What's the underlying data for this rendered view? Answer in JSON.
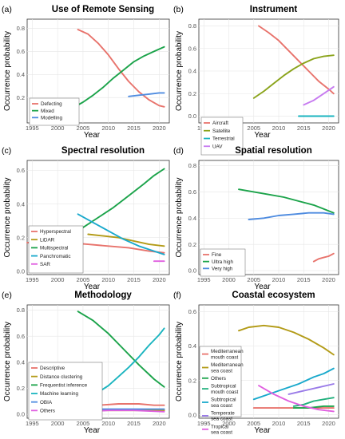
{
  "xlabel": "Year",
  "ylabel": "Occurrence probability",
  "chart_data": [
    {
      "panel": "(a)",
      "title": "Use of Remote Sensing",
      "type": "line",
      "xlim": [
        1994,
        2022
      ],
      "ylim": [
        -0.02,
        0.88
      ],
      "xticks": [
        1995,
        2000,
        2005,
        2010,
        2015,
        2020
      ],
      "yticks": [
        0.2,
        0.4,
        0.6,
        0.8
      ],
      "legend_position": "bottom-left",
      "series": [
        {
          "name": "Defecting",
          "color": "#e8736c",
          "x": [
            2004,
            2006,
            2008,
            2010,
            2012,
            2014,
            2016,
            2018,
            2020,
            2021
          ],
          "y": [
            0.79,
            0.75,
            0.67,
            0.57,
            0.45,
            0.34,
            0.25,
            0.18,
            0.13,
            0.12
          ]
        },
        {
          "name": "Mixed",
          "color": "#1ba34a",
          "x": [
            2003,
            2005,
            2007,
            2009,
            2011,
            2013,
            2015,
            2017,
            2019,
            2021
          ],
          "y": [
            0.11,
            0.16,
            0.22,
            0.29,
            0.37,
            0.44,
            0.51,
            0.56,
            0.6,
            0.64
          ]
        },
        {
          "name": "Modelling",
          "color": "#4f8ce0",
          "x": [
            2014,
            2016,
            2018,
            2020,
            2021
          ],
          "y": [
            0.21,
            0.22,
            0.23,
            0.24,
            0.24
          ]
        }
      ]
    },
    {
      "panel": "(b)",
      "title": "Instrument",
      "type": "line",
      "xlim": [
        1994,
        2022
      ],
      "ylim": [
        -0.06,
        0.86
      ],
      "xticks": [
        1995,
        2000,
        2005,
        2010,
        2015,
        2020
      ],
      "yticks": [
        0.0,
        0.2,
        0.4,
        0.6,
        0.8
      ],
      "legend_position": "bottom-left",
      "series": [
        {
          "name": "Aircraft",
          "color": "#e8736c",
          "x": [
            2006,
            2008,
            2010,
            2012,
            2014,
            2016,
            2018,
            2020,
            2021
          ],
          "y": [
            0.8,
            0.74,
            0.67,
            0.58,
            0.49,
            0.4,
            0.31,
            0.24,
            0.2
          ]
        },
        {
          "name": "Satellite",
          "color": "#8aa31a",
          "x": [
            2005,
            2007,
            2009,
            2011,
            2013,
            2015,
            2017,
            2019,
            2021
          ],
          "y": [
            0.16,
            0.22,
            0.29,
            0.36,
            0.42,
            0.47,
            0.51,
            0.53,
            0.54
          ]
        },
        {
          "name": "Terrestrial",
          "color": "#1ab4bf",
          "x": [
            2014,
            2016,
            2018,
            2020,
            2021
          ],
          "y": [
            0.0,
            0.0,
            0.0,
            0.0,
            0.0
          ]
        },
        {
          "name": "UAV",
          "color": "#c77bf0",
          "x": [
            2015,
            2017,
            2019,
            2021
          ],
          "y": [
            0.1,
            0.14,
            0.2,
            0.26
          ]
        }
      ]
    },
    {
      "panel": "(c)",
      "title": "Spectral resolution",
      "type": "line",
      "xlim": [
        1994,
        2022
      ],
      "ylim": [
        -0.02,
        0.66
      ],
      "xticks": [
        1995,
        2000,
        2005,
        2010,
        2015,
        2020
      ],
      "yticks": [
        0.0,
        0.2,
        0.4,
        0.6
      ],
      "legend_position": "bottom-left",
      "series": [
        {
          "name": "Hyperspectral",
          "color": "#e8736c",
          "x": [
            1994,
            1998,
            2002,
            2006,
            2010,
            2014,
            2018,
            2021
          ],
          "y": [
            0.17,
            0.17,
            0.17,
            0.16,
            0.15,
            0.14,
            0.12,
            0.11
          ]
        },
        {
          "name": "LiDAR",
          "color": "#b39b17",
          "x": [
            2006,
            2009,
            2012,
            2015,
            2018,
            2021
          ],
          "y": [
            0.22,
            0.21,
            0.2,
            0.18,
            0.16,
            0.15
          ]
        },
        {
          "name": "Multispectral",
          "color": "#1ba34a",
          "x": [
            2005,
            2008,
            2011,
            2014,
            2017,
            2019,
            2021
          ],
          "y": [
            0.26,
            0.32,
            0.38,
            0.45,
            0.52,
            0.57,
            0.61
          ]
        },
        {
          "name": "Panchromatic",
          "color": "#1aa9cc",
          "x": [
            2004,
            2007,
            2010,
            2013,
            2016,
            2019,
            2021
          ],
          "y": [
            0.34,
            0.29,
            0.24,
            0.19,
            0.15,
            0.12,
            0.1
          ]
        },
        {
          "name": "SAR",
          "color": "#e05fe0",
          "x": [
            2019,
            2020,
            2021
          ],
          "y": [
            0.06,
            0.06,
            0.06
          ]
        }
      ]
    },
    {
      "panel": "(d)",
      "title": "Spatial resolution",
      "type": "line",
      "xlim": [
        1994,
        2022
      ],
      "ylim": [
        -0.03,
        0.84
      ],
      "xticks": [
        1995,
        2000,
        2005,
        2010,
        2015,
        2020
      ],
      "yticks": [
        0.0,
        0.2,
        0.4,
        0.6,
        0.8
      ],
      "legend_position": "bottom-left",
      "series": [
        {
          "name": "Fine",
          "color": "#e8736c",
          "x": [
            2017,
            2018,
            2019,
            2020,
            2021
          ],
          "y": [
            0.07,
            0.09,
            0.1,
            0.11,
            0.13
          ]
        },
        {
          "name": "Ultra high",
          "color": "#1ba34a",
          "x": [
            2002,
            2005,
            2008,
            2011,
            2014,
            2017,
            2019,
            2021
          ],
          "y": [
            0.62,
            0.6,
            0.58,
            0.56,
            0.53,
            0.5,
            0.47,
            0.44
          ]
        },
        {
          "name": "Very high",
          "color": "#4f8ce0",
          "x": [
            2004,
            2007,
            2010,
            2013,
            2016,
            2019,
            2021
          ],
          "y": [
            0.39,
            0.4,
            0.42,
            0.43,
            0.44,
            0.44,
            0.43
          ]
        }
      ]
    },
    {
      "panel": "(e)",
      "title": "Methodology",
      "type": "line",
      "xlim": [
        1994,
        2022
      ],
      "ylim": [
        -0.03,
        0.84
      ],
      "xticks": [
        1995,
        2000,
        2005,
        2010,
        2015,
        2020
      ],
      "yticks": [
        0.0,
        0.2,
        0.4,
        0.6,
        0.8
      ],
      "legend_position": "bottom-left",
      "series": [
        {
          "name": "Descriptive",
          "color": "#e8736c",
          "x": [
            1996,
            2000,
            2004,
            2008,
            2012,
            2016,
            2019,
            2021
          ],
          "y": [
            0.02,
            0.04,
            0.05,
            0.07,
            0.08,
            0.08,
            0.07,
            0.07
          ]
        },
        {
          "name": "Distance clustering",
          "color": "#b39b17",
          "x": [
            2000,
            2005,
            2010,
            2015,
            2021
          ],
          "y": [
            0.03,
            0.03,
            0.03,
            0.03,
            0.03
          ]
        },
        {
          "name": "Frequentist inference",
          "color": "#1ba34a",
          "x": [
            2004,
            2007,
            2010,
            2013,
            2016,
            2019,
            2021
          ],
          "y": [
            0.79,
            0.72,
            0.62,
            0.5,
            0.38,
            0.27,
            0.21
          ]
        },
        {
          "name": "Machine learning",
          "color": "#1ab4bf",
          "x": [
            2008,
            2010,
            2012,
            2014,
            2016,
            2018,
            2020,
            2021
          ],
          "y": [
            0.17,
            0.22,
            0.29,
            0.36,
            0.44,
            0.53,
            0.61,
            0.66
          ]
        },
        {
          "name": "OBIA",
          "color": "#4f8ce0",
          "x": [
            2008,
            2011,
            2014,
            2017,
            2020,
            2021
          ],
          "y": [
            0.04,
            0.04,
            0.04,
            0.04,
            0.04,
            0.04
          ]
        },
        {
          "name": "Others",
          "color": "#e05fe0",
          "x": [
            2000,
            2005,
            2010,
            2015,
            2021
          ],
          "y": [
            0.02,
            0.02,
            0.03,
            0.03,
            0.02
          ]
        }
      ]
    },
    {
      "panel": "(f)",
      "title": "Coastal ecosystem",
      "type": "line",
      "xlim": [
        1994,
        2022
      ],
      "ylim": [
        -0.02,
        0.64
      ],
      "xticks": [
        1995,
        2000,
        2005,
        2010,
        2015,
        2020
      ],
      "yticks": [
        0.0,
        0.2,
        0.4,
        0.6
      ],
      "legend_position": "left",
      "series": [
        {
          "name": "Mediterranean mouth coast",
          "color": "#e8736c",
          "x": [
            2005,
            2010,
            2015,
            2021
          ],
          "y": [
            0.04,
            0.04,
            0.04,
            0.04
          ]
        },
        {
          "name": "Mediterranean sea coast",
          "color": "#b39b17",
          "x": [
            2002,
            2004,
            2007,
            2010,
            2013,
            2016,
            2019,
            2021
          ],
          "y": [
            0.49,
            0.51,
            0.52,
            0.51,
            0.48,
            0.44,
            0.39,
            0.35
          ]
        },
        {
          "name": "Others",
          "color": "#1ba34a",
          "x": [
            2013,
            2016,
            2019,
            2021
          ],
          "y": [
            0.04,
            0.04,
            0.05,
            0.05
          ]
        },
        {
          "name": "Subtropical mouth coast",
          "color": "#21b07d",
          "x": [
            2013,
            2015,
            2017,
            2019,
            2021
          ],
          "y": [
            0.05,
            0.06,
            0.08,
            0.09,
            0.1
          ]
        },
        {
          "name": "Subtropical sea coast",
          "color": "#1aa9cc",
          "x": [
            2005,
            2008,
            2011,
            2014,
            2017,
            2019,
            2021
          ],
          "y": [
            0.09,
            0.12,
            0.15,
            0.18,
            0.22,
            0.24,
            0.27
          ]
        },
        {
          "name": "Temperate sea coast",
          "color": "#9a7be8",
          "x": [
            2012,
            2015,
            2018,
            2021
          ],
          "y": [
            0.12,
            0.14,
            0.16,
            0.18
          ]
        },
        {
          "name": "Tropical sea coast",
          "color": "#e05fe0",
          "x": [
            2006,
            2009,
            2012,
            2015,
            2018,
            2021
          ],
          "y": [
            0.17,
            0.12,
            0.08,
            0.05,
            0.03,
            0.02
          ]
        }
      ]
    }
  ]
}
